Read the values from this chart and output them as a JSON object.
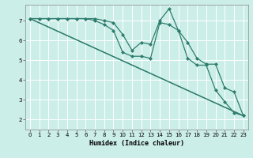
{
  "xlabel": "Humidex (Indice chaleur)",
  "bg_color": "#cceee8",
  "line_color": "#2e7d6e",
  "grid_color": "#ffffff",
  "ylim": [
    1.5,
    7.8
  ],
  "xlim": [
    -0.5,
    23.5
  ],
  "yticks": [
    2,
    3,
    4,
    5,
    6,
    7
  ],
  "xticks": [
    0,
    1,
    2,
    3,
    4,
    5,
    6,
    7,
    8,
    9,
    10,
    11,
    12,
    13,
    14,
    15,
    16,
    17,
    18,
    19,
    20,
    21,
    22,
    23
  ],
  "lines": [
    {
      "x": [
        0,
        1,
        2,
        3,
        4,
        5,
        6,
        7,
        8,
        9,
        10,
        11,
        12,
        13,
        14,
        15,
        16,
        17,
        18,
        19,
        20,
        21,
        22,
        23
      ],
      "y": [
        7.1,
        7.1,
        7.1,
        7.1,
        7.1,
        7.1,
        7.1,
        7.1,
        7.0,
        6.9,
        6.3,
        5.5,
        5.9,
        5.8,
        7.0,
        7.6,
        6.5,
        5.9,
        5.1,
        4.8,
        4.8,
        3.6,
        3.4,
        2.2
      ],
      "marker": true
    },
    {
      "x": [
        0,
        1,
        2,
        3,
        4,
        5,
        6,
        7,
        8,
        9,
        10,
        11,
        12,
        13,
        14,
        15,
        16,
        17,
        18,
        19,
        20,
        21,
        22,
        23
      ],
      "y": [
        7.1,
        7.1,
        7.1,
        7.1,
        7.1,
        7.1,
        7.1,
        7.0,
        6.8,
        6.5,
        5.4,
        5.2,
        5.2,
        5.1,
        6.9,
        6.8,
        6.5,
        5.1,
        4.75,
        4.75,
        3.5,
        2.9,
        2.35,
        2.2
      ],
      "marker": true
    },
    {
      "x": [
        0,
        23
      ],
      "y": [
        7.1,
        2.2
      ],
      "marker": false
    },
    {
      "x": [
        0,
        23
      ],
      "y": [
        7.1,
        2.2
      ],
      "marker": false
    }
  ],
  "marker_style": "D",
  "marker_size": 2.0,
  "linewidth": 0.9,
  "tick_fontsize": 5.0,
  "label_fontsize": 6.0
}
